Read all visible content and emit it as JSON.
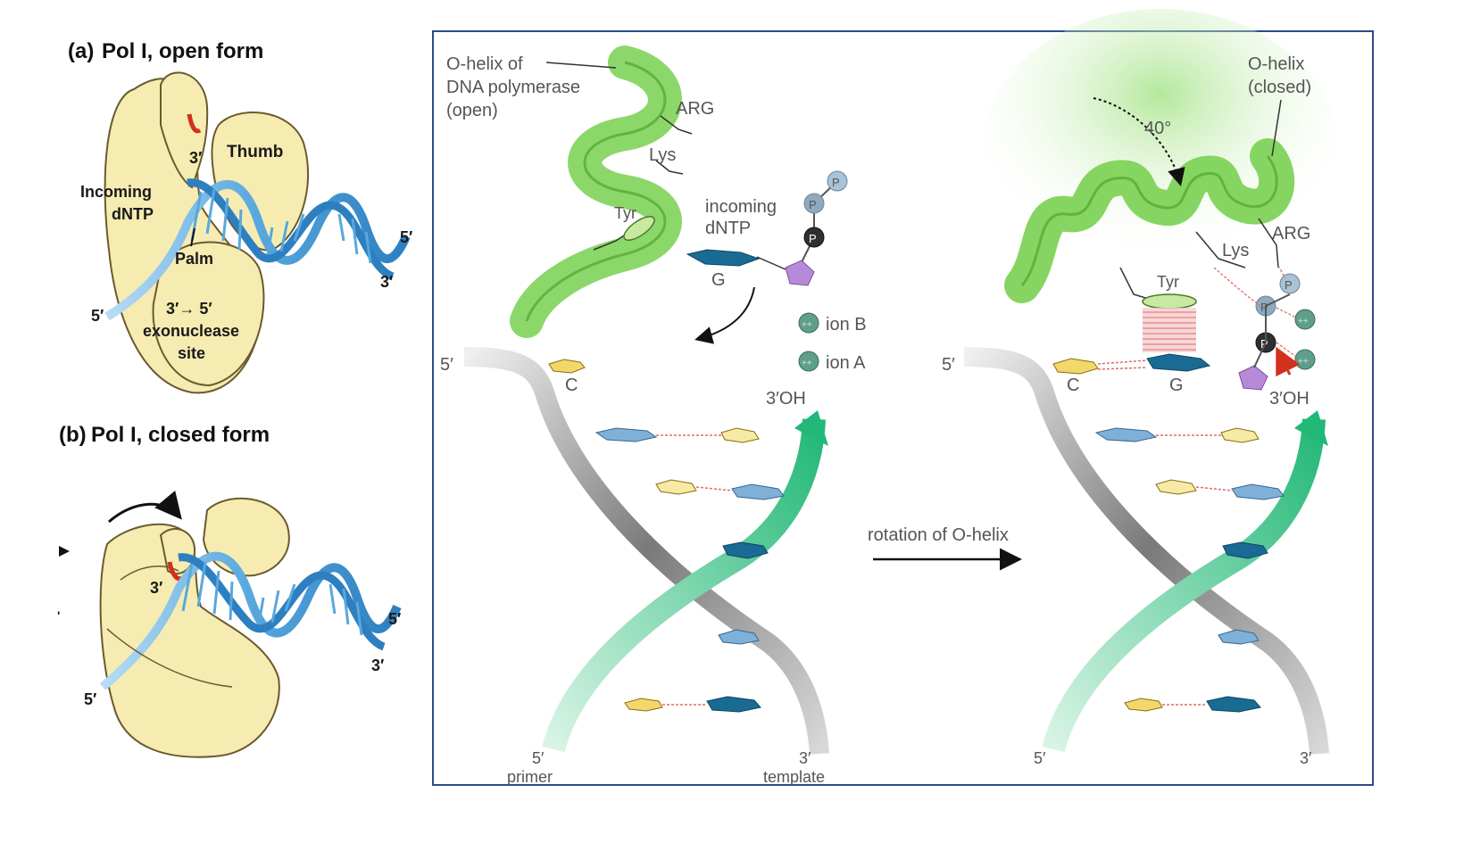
{
  "panel_a": {
    "title_letter": "(a)",
    "title": "Pol I, open form",
    "labels": {
      "three_prime_top": "3′",
      "thumb": "Thumb",
      "incoming_dntp": "Incoming",
      "incoming_dntp_2": "dNTP",
      "palm": "Palm",
      "exo_1": "3′→ 5′",
      "exo_2": "exonuclease",
      "exo_3": "site",
      "five_prime_right": "5′",
      "three_prime_right": "3′",
      "five_prime_left": "5′"
    }
  },
  "panel_b": {
    "title_letter": "(b)",
    "title": "Pol I, closed form",
    "labels": {
      "three_prime_top": "3′",
      "five_prime_right": "5′",
      "three_prime_right": "3′",
      "five_prime_left": "5′"
    }
  },
  "open_diagram": {
    "ohelix_1": "O-helix of",
    "ohelix_2": "DNA polymerase",
    "ohelix_3": "(open)",
    "arg": "ARG",
    "lys": "Lys",
    "tyr": "Tyr",
    "incoming_1": "incoming",
    "incoming_2": "dNTP",
    "p": "P",
    "g": "G",
    "ion_sym": "++",
    "ion_b": "ion B",
    "ion_a": "ion A",
    "five_prime": "5′",
    "c": "C",
    "three_oh": "3′OH",
    "bottom_5": "5′",
    "bottom_primer": "primer",
    "bottom_3": "3′",
    "bottom_template": "template"
  },
  "arrow": {
    "label": "rotation of O-helix"
  },
  "closed_diagram": {
    "ohelix_1": "O-helix",
    "ohelix_2": "(closed)",
    "angle": "40°",
    "arg": "ARG",
    "lys": "Lys",
    "tyr": "Tyr",
    "p": "P",
    "ion_sym": "++",
    "five_prime": "5′",
    "c": "C",
    "g": "G",
    "three_oh": "3′OH",
    "bottom_5": "5′",
    "bottom_3": "3′"
  },
  "colors": {
    "protein": "#f6ecb2",
    "dna_blue": "#58a8de",
    "helix_green": "#7fd35a",
    "template_green": "#3cc88a",
    "primer_gray": "#8f8f8f",
    "red_accent": "#d2301c",
    "frame": "#2b4a8a"
  }
}
